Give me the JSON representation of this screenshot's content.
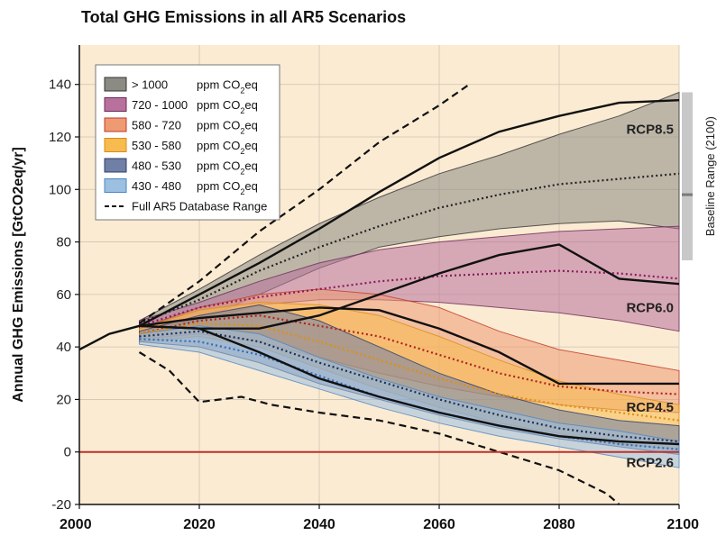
{
  "chart_data": {
    "type": "area",
    "title": "Total GHG Emissions in all AR5 Scenarios",
    "ylabel": "Annual GHG Emissions [GtCO2eq/yr]",
    "xlabel": "",
    "xlim": [
      2000,
      2100
    ],
    "ylim": [
      -20,
      155
    ],
    "x_ticks": [
      "2000",
      "2020",
      "2040",
      "2060",
      "2080",
      "2100"
    ],
    "y_ticks": [
      "-20",
      "0",
      "20",
      "40",
      "60",
      "80",
      "100",
      "120",
      "140"
    ],
    "legend_position": "top-left",
    "background_color": "#fbebd2",
    "zero_line_color": "#c0302a",
    "legend": [
      {
        "label": "> 1000",
        "unit": "ppm CO2eq",
        "color": "#8b8b83",
        "edge": "#333333"
      },
      {
        "label": "720 - 1000",
        "unit": "ppm CO2eq",
        "color": "#b8719c",
        "edge": "#6d2a57"
      },
      {
        "label": "580 - 720",
        "unit": "ppm CO2eq",
        "color": "#ee9a72",
        "edge": "#c0392b"
      },
      {
        "label": "530 - 580",
        "unit": "ppm CO2eq",
        "color": "#f7bb4f",
        "edge": "#d88e14"
      },
      {
        "label": "480 - 530",
        "unit": "ppm CO2eq",
        "color": "#6f7fa5",
        "edge": "#2d3d65"
      },
      {
        "label": "430 - 480",
        "unit": "ppm CO2eq",
        "color": "#9cc0e0",
        "edge": "#4d86c4"
      },
      {
        "label": "Full AR5 Database Range",
        "unit": "",
        "style": "dashed"
      }
    ],
    "series": [
      {
        "name": "> 1000",
        "color": "#8b8b83",
        "edge": "#333333",
        "median_color": "#222222",
        "x": [
          2010,
          2020,
          2030,
          2040,
          2050,
          2060,
          2070,
          2080,
          2090,
          2100
        ],
        "lower": [
          47,
          50,
          60,
          70,
          78,
          82,
          85,
          87,
          88,
          85
        ],
        "upper": [
          50,
          62,
          75,
          87,
          97,
          106,
          113,
          121,
          128,
          137
        ],
        "median": [
          49,
          58,
          69,
          78,
          86,
          93,
          98,
          102,
          104,
          106
        ]
      },
      {
        "name": "720 - 1000",
        "color": "#b8719c",
        "edge": "#6d2a57",
        "median_color": "#8a1a5e",
        "x": [
          2010,
          2020,
          2030,
          2040,
          2050,
          2060,
          2070,
          2080,
          2090,
          2100
        ],
        "lower": [
          46,
          50,
          56,
          58,
          58,
          57,
          55,
          53,
          50,
          46
        ],
        "upper": [
          50,
          57,
          65,
          72,
          77,
          80,
          82,
          84,
          85,
          86
        ],
        "median": [
          48,
          55,
          59,
          62,
          65,
          67,
          68,
          69,
          68,
          66
        ]
      },
      {
        "name": "580 - 720",
        "color": "#ee9a72",
        "edge": "#c0392b",
        "median_color": "#b32020",
        "x": [
          2010,
          2020,
          2030,
          2040,
          2050,
          2060,
          2070,
          2080,
          2090,
          2100
        ],
        "lower": [
          43,
          45,
          42,
          36,
          30,
          25,
          21,
          18,
          16,
          15
        ],
        "upper": [
          47,
          55,
          60,
          62,
          60,
          55,
          46,
          39,
          35,
          31
        ],
        "median": [
          45,
          50,
          52,
          48,
          44,
          37,
          30,
          25,
          23,
          22
        ]
      },
      {
        "name": "530 - 580",
        "color": "#f7bb4f",
        "edge": "#d88e14",
        "median_color": "#e0900e",
        "x": [
          2010,
          2020,
          2030,
          2040,
          2050,
          2060,
          2070,
          2080,
          2090,
          2100
        ],
        "lower": [
          42,
          44,
          40,
          32,
          24,
          17,
          11,
          7,
          3,
          1
        ],
        "upper": [
          47,
          54,
          57,
          56,
          52,
          44,
          35,
          27,
          22,
          18
        ],
        "median": [
          45,
          49,
          48,
          42,
          35,
          28,
          22,
          18,
          15,
          12
        ]
      },
      {
        "name": "480 - 530",
        "color": "#6f7fa5",
        "edge": "#2d3d65",
        "median_color": "#1e2d55",
        "x": [
          2010,
          2020,
          2030,
          2040,
          2050,
          2060,
          2070,
          2080,
          2090,
          2100
        ],
        "lower": [
          42,
          40,
          34,
          26,
          20,
          14,
          9,
          5,
          2,
          -1
        ],
        "upper": [
          46,
          52,
          56,
          50,
          40,
          30,
          22,
          16,
          12,
          10
        ],
        "median": [
          44,
          46,
          42,
          34,
          27,
          20,
          14,
          9,
          6,
          4
        ]
      },
      {
        "name": "430 - 480",
        "color": "#9cc0e0",
        "edge": "#4d86c4",
        "median_color": "#2f6fb8",
        "x": [
          2010,
          2020,
          2030,
          2040,
          2050,
          2060,
          2070,
          2080,
          2090,
          2100
        ],
        "lower": [
          41,
          38,
          31,
          24,
          17,
          11,
          6,
          2,
          -2,
          -6
        ],
        "upper": [
          45,
          48,
          45,
          36,
          28,
          21,
          16,
          11,
          8,
          4
        ],
        "median": [
          43,
          42,
          37,
          29,
          21,
          15,
          10,
          6,
          3,
          1
        ]
      }
    ],
    "database_range": {
      "upper": {
        "x": [
          2010,
          2020,
          2030,
          2040,
          2050,
          2060,
          2065
        ],
        "y": [
          49,
          65,
          84,
          100,
          118,
          132,
          140
        ]
      },
      "lower": {
        "x": [
          2010,
          2015,
          2020,
          2027,
          2032,
          2040,
          2050,
          2060,
          2070,
          2080,
          2088,
          2090
        ],
        "y": [
          38,
          31,
          19,
          21,
          18,
          15,
          12,
          7,
          0,
          -7,
          -16,
          -20
        ]
      }
    },
    "historical": {
      "x": [
        2000,
        2005,
        2010
      ],
      "y": [
        39,
        45,
        48
      ]
    },
    "rcp_pathways": [
      {
        "name": "RCP8.5",
        "x": [
          2010,
          2020,
          2030,
          2040,
          2050,
          2060,
          2070,
          2080,
          2090,
          2100
        ],
        "y": [
          48,
          60,
          72,
          85,
          99,
          112,
          122,
          128,
          133,
          134
        ]
      },
      {
        "name": "RCP6.0",
        "x": [
          2010,
          2020,
          2030,
          2040,
          2050,
          2060,
          2070,
          2080,
          2090,
          2100
        ],
        "y": [
          48,
          47,
          47,
          52,
          60,
          68,
          75,
          79,
          66,
          64
        ]
      },
      {
        "name": "RCP4.5",
        "x": [
          2010,
          2020,
          2030,
          2040,
          2050,
          2060,
          2070,
          2080,
          2090,
          2100
        ],
        "y": [
          48,
          51,
          53,
          55,
          54,
          47,
          38,
          26,
          26,
          26
        ]
      },
      {
        "name": "RCP2.6",
        "x": [
          2010,
          2020,
          2030,
          2040,
          2050,
          2060,
          2070,
          2080,
          2090,
          2100
        ],
        "y": [
          48,
          47,
          38,
          28,
          21,
          15,
          10,
          6,
          4,
          3
        ]
      }
    ],
    "rcp_labels": [
      {
        "text": "RCP8.5",
        "y": 123
      },
      {
        "text": "RCP6.0",
        "y": 55
      },
      {
        "text": "RCP4.5",
        "y": 17
      },
      {
        "text": "RCP2.6",
        "y": -4
      }
    ],
    "baseline_range": {
      "label": "Baseline Range (2100)",
      "low": 73,
      "high": 137,
      "median": 98
    }
  }
}
